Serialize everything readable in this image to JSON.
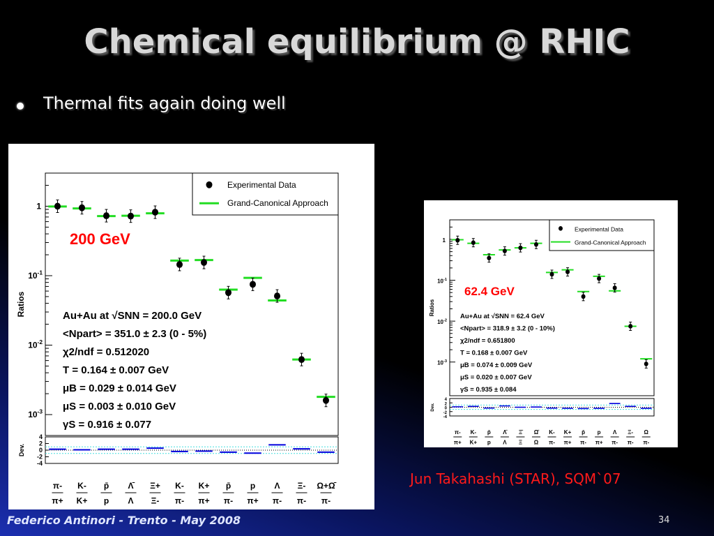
{
  "slide": {
    "title": "Chemical equilibrium @ RHIC",
    "bullet": "Thermal fits again doing well",
    "credit": "Jun Takahashi (STAR), SQM`07",
    "footer": "Federico Antinori - Trento - May 2008",
    "page_number": "34"
  },
  "colors": {
    "fit_line": "#22dd22",
    "data_marker": "#000000",
    "deviation": "#0000dd",
    "energy_label": "#ff0000",
    "band": "#44dddd"
  },
  "chart_data": [
    {
      "type": "scatter",
      "energy_label": "200 GeV",
      "ylabel": "Ratios",
      "yscale": "log",
      "ylim": [
        0.0005,
        3
      ],
      "yticks": [
        "1",
        "10-1",
        "10-2",
        "10-3"
      ],
      "legend": [
        "Experimental Data",
        "Grand-Canonical Approach"
      ],
      "legend_position": "top-right",
      "categories": [
        "π-/π+",
        "K-/K+",
        "p̄/p",
        "Λ̄/Λ",
        "Ξ+/Ξ-",
        "K-/π-",
        "K+/π+",
        "p̄/π-",
        "p/π+",
        "Λ/π-",
        "Ξ-/π-",
        "Ω+Ω̄/π-"
      ],
      "category_num": [
        "π-",
        "K-",
        "p̄",
        "Λ̄",
        "Ξ+",
        "K-",
        "K+",
        "p̄",
        "p",
        "Λ",
        "Ξ-",
        "Ω+Ω̄"
      ],
      "category_den": [
        "π+",
        "K+",
        "p",
        "Λ",
        "Ξ-",
        "π-",
        "π+",
        "π-",
        "π+",
        "π-",
        "π-",
        "π-"
      ],
      "series": [
        {
          "name": "Experimental Data",
          "values": [
            1.0,
            0.95,
            0.73,
            0.72,
            0.82,
            0.145,
            0.155,
            0.057,
            0.075,
            0.051,
            0.0062,
            0.0016
          ]
        },
        {
          "name": "Grand-Canonical Approach",
          "values": [
            0.99,
            0.93,
            0.72,
            0.73,
            0.79,
            0.165,
            0.168,
            0.063,
            0.093,
            0.044,
            0.0062,
            0.0018
          ]
        }
      ],
      "info": [
        "Au+Au at √SNN = 200.0 GeV",
        "<Npart> = 351.0 ± 2.3 (0 - 5%)",
        "χ2/ndf = 0.512020",
        "T = 0.164 ± 0.007 GeV",
        "μB = 0.029 ± 0.014 GeV",
        "μS = 0.003 ± 0.010 GeV",
        "γS = 0.916 ± 0.077"
      ],
      "deviation": {
        "ylabel": "Dev.",
        "yticks": [
          "4",
          "2",
          "0",
          "-2",
          "-4"
        ],
        "ylim": [
          -4,
          4
        ],
        "values": [
          0.3,
          0.1,
          0.3,
          0.3,
          0.6,
          -0.4,
          -0.3,
          -0.6,
          -0.9,
          1.6,
          0.4,
          -0.6
        ]
      }
    },
    {
      "type": "scatter",
      "energy_label": "62.4 GeV",
      "ylabel": "Ratios",
      "yscale": "log",
      "ylim": [
        0.00015,
        3
      ],
      "yticks": [
        "1",
        "10-1",
        "10-2",
        "10-3"
      ],
      "legend": [
        "Experimental Data",
        "Grand-Canonical Approach"
      ],
      "legend_position": "top-right",
      "categories": [
        "π-/π+",
        "K-/K+",
        "p̄/p",
        "Λ̄/Λ",
        "Ξ+/Ξ-",
        "Ω̄/Ω",
        "K-/π-",
        "K+/π+",
        "p̄/π-",
        "p/π+",
        "Λ/π-",
        "Ξ-/π-",
        "Ω/π-"
      ],
      "category_num": [
        "π-",
        "K-",
        "p̄",
        "Λ̄",
        "Ξ̄",
        "Ω̄",
        "K-",
        "K+",
        "p̄",
        "p",
        "Λ",
        "Ξ-",
        "Ω"
      ],
      "category_den": [
        "π+",
        "K+",
        "p",
        "Λ",
        "Ξ",
        "Ω",
        "π-",
        "π+",
        "π-",
        "π+",
        "π-",
        "π-",
        "π-"
      ],
      "series": [
        {
          "name": "Experimental Data",
          "values": [
            0.95,
            0.83,
            0.35,
            0.52,
            0.62,
            0.75,
            0.14,
            0.16,
            0.04,
            0.11,
            0.065,
            0.0075,
            0.0009
          ]
        },
        {
          "name": "Grand-Canonical Approach",
          "values": [
            0.98,
            0.8,
            0.42,
            0.55,
            0.62,
            0.8,
            0.155,
            0.18,
            0.053,
            0.125,
            0.055,
            0.0075,
            0.0012
          ]
        }
      ],
      "info": [
        "Au+Au at √SNN = 62.4 GeV",
        "<Npart> = 318.9 ± 3.2 (0 - 10%)",
        "χ2/ndf = 0.651800",
        "T = 0.168 ± 0.007 GeV",
        "μB = 0.074 ± 0.009 GeV",
        "μS = 0.020 ± 0.007 GeV",
        "γS = 0.935 ± 0.084"
      ],
      "deviation": {
        "ylabel": "Dev.",
        "yticks": [
          "4",
          "2",
          "0",
          "-2",
          "-4"
        ],
        "ylim": [
          -4,
          4
        ],
        "values": [
          0.2,
          0.4,
          -0.4,
          0.6,
          0.0,
          0.1,
          -0.4,
          -0.5,
          -0.6,
          -0.5,
          1.7,
          0.4,
          -0.5
        ]
      }
    }
  ]
}
